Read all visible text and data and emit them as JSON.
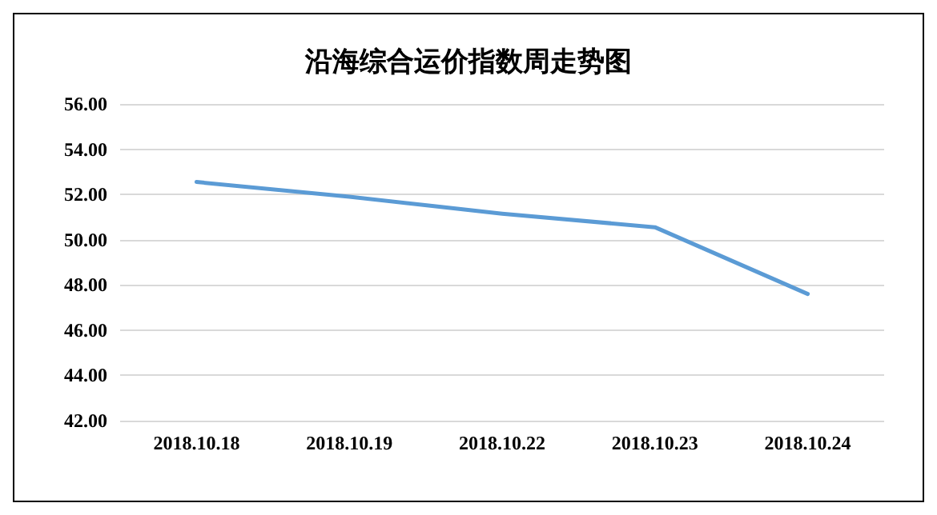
{
  "chart_data": {
    "type": "line",
    "title": "沿海综合运价指数周走势图",
    "categories": [
      "2018.10.18",
      "2018.10.19",
      "2018.10.22",
      "2018.10.23",
      "2018.10.24"
    ],
    "series": [
      {
        "color": "#5b9bd5",
        "values": [
          52.55,
          51.9,
          51.15,
          50.55,
          47.6
        ]
      }
    ],
    "ylim": [
      42,
      56
    ],
    "yticks": [
      {
        "value": 42,
        "label": "42.00"
      },
      {
        "value": 44,
        "label": "44.00"
      },
      {
        "value": 46,
        "label": "46.00"
      },
      {
        "value": 48,
        "label": "48.00"
      },
      {
        "value": 50,
        "label": "50.00"
      },
      {
        "value": 52,
        "label": "52.00"
      },
      {
        "value": 54,
        "label": "54.00"
      },
      {
        "value": 56,
        "label": "56.00"
      }
    ],
    "grid": "y",
    "marker": "none",
    "line_style": "solid"
  }
}
